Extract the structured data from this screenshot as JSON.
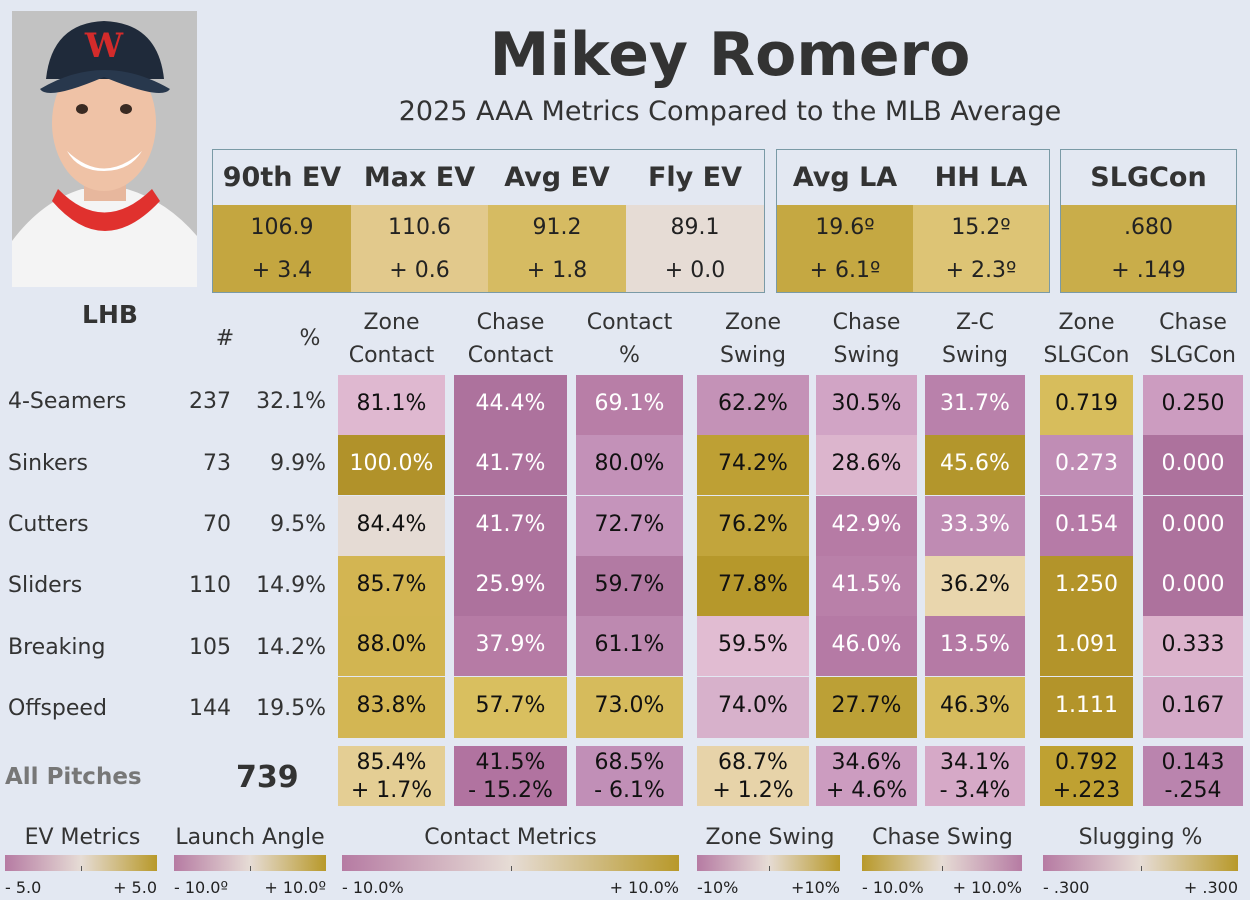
{
  "player": {
    "name": "Mikey Romero",
    "subtitle": "2025 AAA Metrics Compared to the MLB Average",
    "hand": "LHB"
  },
  "colors": {
    "positive": "#b8992a",
    "neutral": "#e6dcd5",
    "negative": "#b67ba3"
  },
  "header_groups": [
    {
      "id": "ev",
      "metrics": [
        {
          "label": "90th EV",
          "value": "106.9",
          "diff": "+ 3.4",
          "color": "#c4a640"
        },
        {
          "label": "Max EV",
          "value": "110.6",
          "diff": "+ 0.6",
          "color": "#e2c98c"
        },
        {
          "label": "Avg EV",
          "value": "91.2",
          "diff": "+ 1.8",
          "color": "#d6bb62"
        },
        {
          "label": "Fly EV",
          "value": "89.1",
          "diff": "+ 0.0",
          "color": "#e6dcd5"
        }
      ]
    },
    {
      "id": "la",
      "metrics": [
        {
          "label": "Avg LA",
          "value": "19.6º",
          "diff": "+ 6.1º",
          "color": "#c5a842"
        },
        {
          "label": "HH LA",
          "value": "15.2º",
          "diff": "+ 2.3º",
          "color": "#ddc475"
        }
      ]
    },
    {
      "id": "slg",
      "metrics": [
        {
          "label": "SLGCon",
          "value": ".680",
          "diff": "+ .149",
          "color": "#c9ad4a"
        }
      ]
    }
  ],
  "table": {
    "count_header": "#",
    "pct_header": "%",
    "columns": [
      {
        "line1": "Zone",
        "line2": "Contact"
      },
      {
        "line1": "Chase",
        "line2": "Contact"
      },
      {
        "line1": "Contact",
        "line2": "%"
      },
      {
        "line1": "Zone",
        "line2": "Swing"
      },
      {
        "line1": "Chase",
        "line2": "Swing"
      },
      {
        "line1": "Z-C",
        "line2": "Swing"
      },
      {
        "line1": "Zone",
        "line2": "SLGCon"
      },
      {
        "line1": "Chase",
        "line2": "SLGCon"
      }
    ],
    "rows": [
      {
        "label": "4-Seamers",
        "count": "237",
        "pct": "32.1%",
        "cells": [
          {
            "v": "81.1%",
            "c": "#dfb8d0",
            "t": "bk"
          },
          {
            "v": "44.4%",
            "c": "#ad729d",
            "t": "wt"
          },
          {
            "v": "69.1%",
            "c": "#b87ea7",
            "t": "wt"
          },
          {
            "v": "62.2%",
            "c": "#c492b7",
            "t": "bk"
          },
          {
            "v": "30.5%",
            "c": "#d1a4c5",
            "t": "bk"
          },
          {
            "v": "31.7%",
            "c": "#b981ab",
            "t": "wt"
          },
          {
            "v": "0.719",
            "c": "#d7bd5c",
            "t": "bk"
          },
          {
            "v": "0.250",
            "c": "#cc9cc0",
            "t": "bk"
          }
        ]
      },
      {
        "label": "Sinkers",
        "count": "73",
        "pct": "9.9%",
        "cells": [
          {
            "v": "100.0%",
            "c": "#b1922a",
            "t": "wt"
          },
          {
            "v": "41.7%",
            "c": "#ad729d",
            "t": "wt"
          },
          {
            "v": "80.0%",
            "c": "#c391b8",
            "t": "bk"
          },
          {
            "v": "74.2%",
            "c": "#bea034",
            "t": "bk"
          },
          {
            "v": "28.6%",
            "c": "#dcb5cd",
            "t": "bk"
          },
          {
            "v": "45.6%",
            "c": "#b3962c",
            "t": "wt"
          },
          {
            "v": "0.273",
            "c": "#c08db5",
            "t": "wt"
          },
          {
            "v": "0.000",
            "c": "#ad729d",
            "t": "wt"
          }
        ]
      },
      {
        "label": "Cutters",
        "count": "70",
        "pct": "9.5%",
        "cells": [
          {
            "v": "84.4%",
            "c": "#e5dbd4",
            "t": "bk"
          },
          {
            "v": "41.7%",
            "c": "#ad729d",
            "t": "wt"
          },
          {
            "v": "72.7%",
            "c": "#c594bb",
            "t": "bk"
          },
          {
            "v": "76.2%",
            "c": "#c2a53c",
            "t": "bk"
          },
          {
            "v": "42.9%",
            "c": "#b67ba5",
            "t": "wt"
          },
          {
            "v": "33.3%",
            "c": "#bf8bb3",
            "t": "wt"
          },
          {
            "v": "0.154",
            "c": "#b67ba7",
            "t": "wt"
          },
          {
            "v": "0.000",
            "c": "#ad729d",
            "t": "wt"
          }
        ]
      },
      {
        "label": "Sliders",
        "count": "110",
        "pct": "14.9%",
        "cells": [
          {
            "v": "85.7%",
            "c": "#d3b552",
            "t": "bk"
          },
          {
            "v": "25.9%",
            "c": "#ad729d",
            "t": "wt"
          },
          {
            "v": "59.7%",
            "c": "#b27aa3",
            "t": "bk"
          },
          {
            "v": "77.8%",
            "c": "#b6982b",
            "t": "bk"
          },
          {
            "v": "41.5%",
            "c": "#b980a9",
            "t": "wt"
          },
          {
            "v": "36.2%",
            "c": "#e9d6ad",
            "t": "bk"
          },
          {
            "v": "1.250",
            "c": "#b3942a",
            "t": "wt"
          },
          {
            "v": "0.000",
            "c": "#ad729d",
            "t": "wt"
          }
        ]
      },
      {
        "label": "Breaking",
        "count": "105",
        "pct": "14.2%",
        "cells": [
          {
            "v": "88.0%",
            "c": "#d2b551",
            "t": "bk"
          },
          {
            "v": "37.9%",
            "c": "#b67ba5",
            "t": "wt"
          },
          {
            "v": "61.1%",
            "c": "#bd89b0",
            "t": "bk"
          },
          {
            "v": "59.5%",
            "c": "#e1bcd2",
            "t": "bk"
          },
          {
            "v": "46.0%",
            "c": "#b57aa5",
            "t": "wt"
          },
          {
            "v": "13.5%",
            "c": "#b57aa5",
            "t": "wt"
          },
          {
            "v": "1.091",
            "c": "#b3942a",
            "t": "wt"
          },
          {
            "v": "0.333",
            "c": "#dcb3cc",
            "t": "bk"
          }
        ]
      },
      {
        "label": "Offspeed",
        "count": "144",
        "pct": "19.5%",
        "cells": [
          {
            "v": "83.8%",
            "c": "#d3b653",
            "t": "bk"
          },
          {
            "v": "57.7%",
            "c": "#d9bf5f",
            "t": "bk"
          },
          {
            "v": "73.0%",
            "c": "#d6bb5c",
            "t": "bk"
          },
          {
            "v": "74.0%",
            "c": "#d7b1cb",
            "t": "bk"
          },
          {
            "v": "27.7%",
            "c": "#bca036",
            "t": "bk"
          },
          {
            "v": "46.3%",
            "c": "#d6bb5c",
            "t": "bk"
          },
          {
            "v": "1.111",
            "c": "#b3942a",
            "t": "wt"
          },
          {
            "v": "0.167",
            "c": "#d4a9c7",
            "t": "bk"
          }
        ]
      }
    ],
    "all": {
      "label": "All Pitches",
      "total": "739",
      "cells": [
        {
          "v": "85.4%",
          "d": "+ 1.7%",
          "c": "#e4ce94",
          "t": "bk"
        },
        {
          "v": "41.5%",
          "d": "- 15.2%",
          "c": "#b173a0",
          "t": "bk"
        },
        {
          "v": "68.5%",
          "d": "- 6.1%",
          "c": "#c18fb7",
          "t": "bk"
        },
        {
          "v": "68.7%",
          "d": "+ 1.2%",
          "c": "#e7d3a9",
          "t": "bk"
        },
        {
          "v": "34.6%",
          "d": "+ 4.6%",
          "c": "#cc9cc0",
          "t": "bk"
        },
        {
          "v": "34.1%",
          "d": "- 3.4%",
          "c": "#d6a9c7",
          "t": "bk"
        },
        {
          "v": "0.792",
          "d": "+.223",
          "c": "#bfa132",
          "t": "bk"
        },
        {
          "v": "0.143",
          "d": "-.254",
          "c": "#ba84ae",
          "t": "bk"
        }
      ]
    }
  },
  "legends": [
    {
      "title": "EV Metrics",
      "min": "- 5.0",
      "max": "+ 5.0"
    },
    {
      "title": "Launch Angle",
      "min": "- 10.0º",
      "max": "+ 10.0º"
    },
    {
      "title": "Contact Metrics",
      "min": "- 10.0%",
      "max": "+ 10.0%"
    },
    {
      "title": "Zone Swing",
      "min": "-10%",
      "max": "+10%"
    },
    {
      "title": "Chase Swing",
      "min": "- 10.0%",
      "max": "+ 10.0%",
      "reversed": true
    },
    {
      "title": "Slugging %",
      "min": "- .300",
      "max": "+ .300"
    }
  ]
}
